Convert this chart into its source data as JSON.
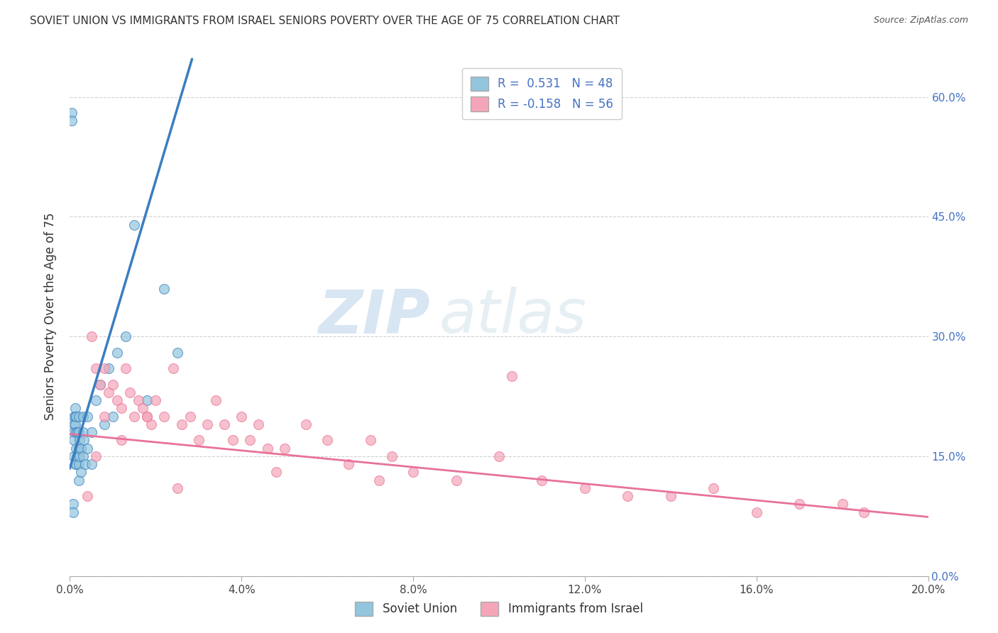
{
  "title": "SOVIET UNION VS IMMIGRANTS FROM ISRAEL SENIORS POVERTY OVER THE AGE OF 75 CORRELATION CHART",
  "source": "Source: ZipAtlas.com",
  "ylabel": "Seniors Poverty Over the Age of 75",
  "xmin": 0.0,
  "xmax": 0.2,
  "ymin": 0.0,
  "ymax": 0.65,
  "yticks": [
    0.0,
    0.15,
    0.3,
    0.45,
    0.6
  ],
  "xticks": [
    0.0,
    0.04,
    0.08,
    0.12,
    0.16,
    0.2
  ],
  "xtick_labels": [
    "0.0%",
    "4.0%",
    "8.0%",
    "12.0%",
    "16.0%",
    "20.0%"
  ],
  "ytick_labels_right": [
    "0.0%",
    "15.0%",
    "30.0%",
    "45.0%",
    "60.0%"
  ],
  "blue_color": "#92c5de",
  "pink_color": "#f4a6b8",
  "blue_line_color": "#3a7ebf",
  "pink_line_color": "#e8729a",
  "legend_blue_label": "R =  0.531   N = 48",
  "legend_pink_label": "R = -0.158   N = 56",
  "legend_bottom_blue": "Soviet Union",
  "legend_bottom_pink": "Immigrants from Israel",
  "watermark_zip": "ZIP",
  "watermark_atlas": "atlas",
  "background_color": "#ffffff",
  "grid_color": "#d0d0d0",
  "blue_x": [
    0.0005,
    0.0005,
    0.0008,
    0.0008,
    0.001,
    0.001,
    0.001,
    0.001,
    0.001,
    0.0012,
    0.0012,
    0.0013,
    0.0013,
    0.0015,
    0.0015,
    0.0015,
    0.0015,
    0.0018,
    0.0018,
    0.002,
    0.002,
    0.002,
    0.002,
    0.002,
    0.0022,
    0.0022,
    0.0025,
    0.0025,
    0.003,
    0.003,
    0.003,
    0.0032,
    0.0035,
    0.004,
    0.004,
    0.005,
    0.005,
    0.006,
    0.007,
    0.008,
    0.009,
    0.01,
    0.011,
    0.013,
    0.015,
    0.018,
    0.022,
    0.025
  ],
  "blue_y": [
    0.58,
    0.57,
    0.09,
    0.08,
    0.2,
    0.19,
    0.18,
    0.17,
    0.15,
    0.21,
    0.2,
    0.19,
    0.14,
    0.2,
    0.18,
    0.16,
    0.14,
    0.18,
    0.15,
    0.2,
    0.18,
    0.16,
    0.14,
    0.12,
    0.17,
    0.15,
    0.16,
    0.13,
    0.2,
    0.18,
    0.15,
    0.17,
    0.14,
    0.2,
    0.16,
    0.18,
    0.14,
    0.22,
    0.24,
    0.19,
    0.26,
    0.2,
    0.28,
    0.3,
    0.44,
    0.22,
    0.36,
    0.28
  ],
  "pink_x": [
    0.005,
    0.006,
    0.007,
    0.008,
    0.009,
    0.01,
    0.011,
    0.012,
    0.013,
    0.014,
    0.015,
    0.016,
    0.017,
    0.018,
    0.019,
    0.02,
    0.022,
    0.024,
    0.026,
    0.028,
    0.03,
    0.032,
    0.034,
    0.036,
    0.038,
    0.04,
    0.042,
    0.044,
    0.046,
    0.05,
    0.055,
    0.06,
    0.065,
    0.07,
    0.075,
    0.08,
    0.09,
    0.1,
    0.11,
    0.12,
    0.13,
    0.14,
    0.15,
    0.16,
    0.17,
    0.18,
    0.185,
    0.103,
    0.072,
    0.048,
    0.025,
    0.018,
    0.012,
    0.008,
    0.006,
    0.004
  ],
  "pink_y": [
    0.3,
    0.26,
    0.24,
    0.26,
    0.23,
    0.24,
    0.22,
    0.21,
    0.26,
    0.23,
    0.2,
    0.22,
    0.21,
    0.2,
    0.19,
    0.22,
    0.2,
    0.26,
    0.19,
    0.2,
    0.17,
    0.19,
    0.22,
    0.19,
    0.17,
    0.2,
    0.17,
    0.19,
    0.16,
    0.16,
    0.19,
    0.17,
    0.14,
    0.17,
    0.15,
    0.13,
    0.12,
    0.15,
    0.12,
    0.11,
    0.1,
    0.1,
    0.11,
    0.08,
    0.09,
    0.09,
    0.08,
    0.25,
    0.12,
    0.13,
    0.11,
    0.2,
    0.17,
    0.2,
    0.15,
    0.1
  ],
  "blue_slope": 18.0,
  "blue_intercept": 0.135,
  "pink_slope": -0.52,
  "pink_intercept": 0.178
}
